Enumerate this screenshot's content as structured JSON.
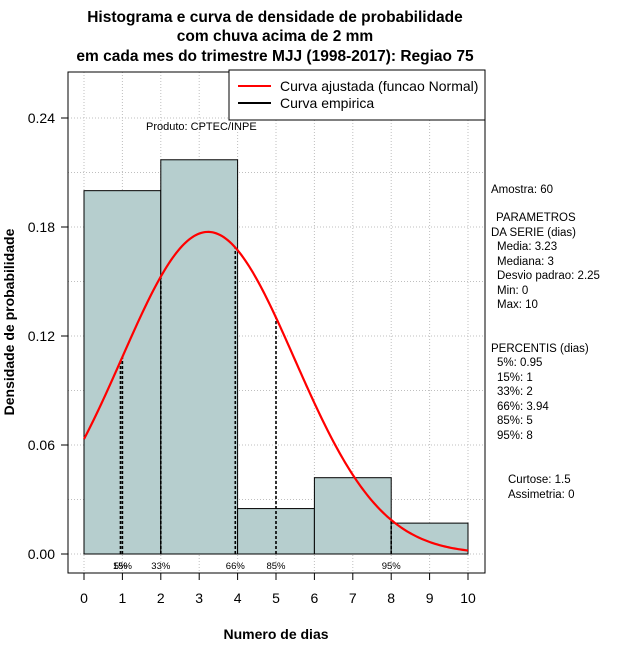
{
  "chart_data": {
    "type": "bar",
    "title_lines": [
      "Histograma e curva de densidade de probabilidade",
      "com chuva acima de 2 mm",
      "em cada mes do trimestre MJJ (1998-2017): Regiao 75"
    ],
    "xlabel": "Numero de dias",
    "ylabel": "Densidade de probabilidade",
    "xlim": [
      0,
      10
    ],
    "ylim": [
      0,
      0.24
    ],
    "x_ticks": [
      "0",
      "1",
      "2",
      "3",
      "4",
      "5",
      "6",
      "7",
      "8",
      "9",
      "10"
    ],
    "y_ticks": [
      "0.00",
      "0.06",
      "0.12",
      "0.18",
      "0.24"
    ],
    "histogram": [
      {
        "from": 0,
        "to": 2,
        "density": 0.2
      },
      {
        "from": 2,
        "to": 4,
        "density": 0.217
      },
      {
        "from": 4,
        "to": 6,
        "density": 0.025
      },
      {
        "from": 6,
        "to": 8,
        "density": 0.042
      },
      {
        "from": 8,
        "to": 10,
        "density": 0.017
      }
    ],
    "fitted_curve": {
      "name": "Curva ajustada (funcao Normal)",
      "color": "#ff0000",
      "mean": 3.23,
      "sd": 2.25
    },
    "empirical_curve": {
      "name": "Curva empirica",
      "color": "#000000"
    },
    "percentile_lines": [
      {
        "label": "5%",
        "x": 0.95
      },
      {
        "label": "15%",
        "x": 1
      },
      {
        "label": "33%",
        "x": 2
      },
      {
        "label": "66%",
        "x": 3.94
      },
      {
        "label": "85%",
        "x": 5
      },
      {
        "label": "95%",
        "x": 8
      }
    ],
    "bar_color": "#b6cece",
    "grid": true,
    "legend_position": "top-right"
  },
  "annotations": {
    "product": "Produto: CPTEC/INPE",
    "sample": "Amostra: 60",
    "params_header": [
      "PARAMETROS",
      "DA SERIE (dias)"
    ],
    "params": [
      "Media: 3.23",
      "Mediana: 3",
      "Desvio padrao: 2.25",
      "Min: 0",
      "Max: 10"
    ],
    "percentis_header": "PERCENTIS (dias)",
    "percentis": [
      "5%: 0.95",
      "15%: 1",
      "33%: 2",
      "66%: 3.94",
      "85%: 5",
      "95%: 8"
    ],
    "curtose": "Curtose: 1.5",
    "assimetria": "Assimetria: 0"
  }
}
